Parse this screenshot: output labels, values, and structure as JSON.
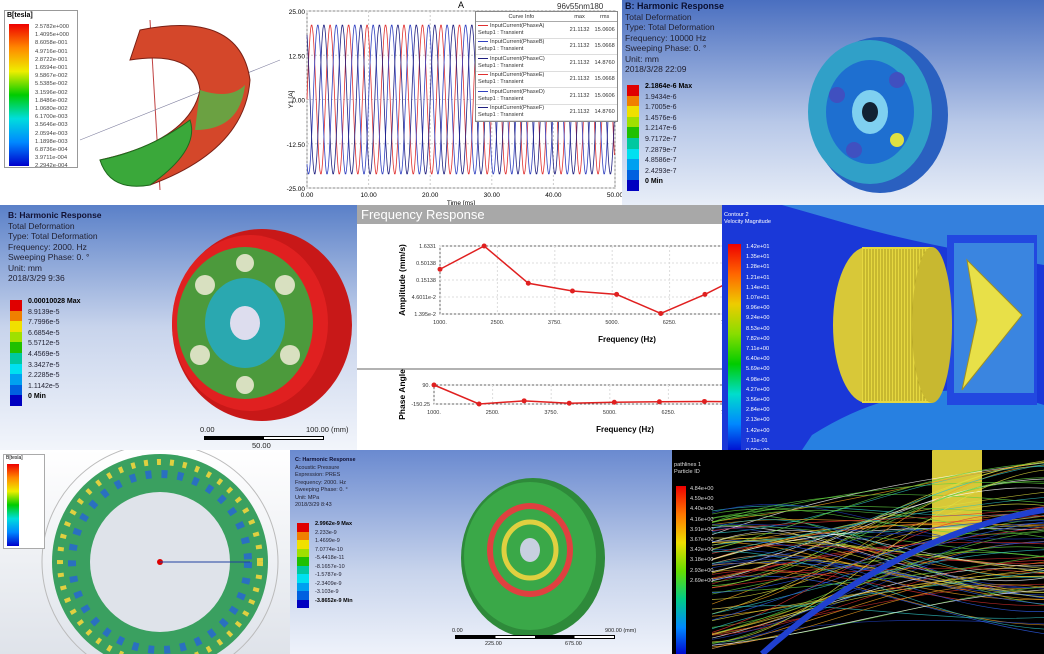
{
  "panel1": {
    "legend_title": "B[tesla]",
    "legend_values": [
      "2.5782e+000",
      "1.4095e+000",
      "8.6058e-001",
      "4.9716e-001",
      "2.8722e-001",
      "1.6594e-001",
      "9.5867e-002",
      "5.5385e-002",
      "3.1596e-002",
      "1.8486e-002",
      "1.0680e-002",
      "6.1700e-003",
      "3.5646e-003",
      "2.0594e-003",
      "1.1898e-003",
      "6.8736e-004",
      "3.9711e-004",
      "2.2942e-004"
    ]
  },
  "panel2": {
    "title": "A",
    "design_name": "96v55nm180",
    "table_headers": [
      "Curve Info",
      "max",
      "rms"
    ],
    "curves": [
      {
        "name": "InputCurrent(PhaseA)",
        "setup": "Setup1 : Transient",
        "max": "21.1132",
        "rms": "15.0606",
        "color": "#e03030"
      },
      {
        "name": "InputCurrent(PhaseB)",
        "setup": "Setup1 : Transient",
        "max": "21.1132",
        "rms": "15.0668",
        "color": "#3040c0"
      },
      {
        "name": "InputCurrent(PhaseC)",
        "setup": "Setup1 : Transient",
        "max": "21.1132",
        "rms": "14.8760",
        "color": "#202080"
      },
      {
        "name": "InputCurrent(PhaseE)",
        "setup": "Setup1 : Transient",
        "max": "21.1132",
        "rms": "15.0668",
        "color": "#e03030"
      },
      {
        "name": "InputCurrent(PhaseD)",
        "setup": "Setup1 : Transient",
        "max": "21.1132",
        "rms": "15.0606",
        "color": "#3040c0"
      },
      {
        "name": "InputCurrent(PhaseF)",
        "setup": "Setup1 : Transient",
        "max": "21.1132",
        "rms": "14.8760",
        "color": "#202080"
      }
    ]
  },
  "panel3": {
    "title": "B: Harmonic Response",
    "lines": [
      "Total Deformation",
      "Type: Total Deformation",
      "Frequency: 10000 Hz",
      "Sweeping Phase: 0. °",
      "Unit: mm",
      "2018/3/28 22:09"
    ],
    "legend_values": [
      "2.1864e-6 Max",
      "1.9434e-6",
      "1.7005e-6",
      "1.4576e-6",
      "1.2147e-6",
      "9.7172e-7",
      "7.2879e-7",
      "4.8586e-7",
      "2.4293e-7",
      "0 Min"
    ]
  },
  "panel4": {
    "title": "B: Harmonic Response",
    "lines": [
      "Total Deformation",
      "Type: Total Deformation",
      "Frequency: 2000. Hz",
      "Sweeping Phase: 0. °",
      "Unit: mm",
      "2018/3/29 9:36"
    ],
    "legend_values": [
      "0.00010028 Max",
      "8.9139e-5",
      "7.7996e-5",
      "6.6854e-5",
      "5.5712e-5",
      "4.4569e-5",
      "3.3427e-5",
      "2.2285e-5",
      "1.1142e-5",
      "0 Min"
    ],
    "scale": {
      "start": "0.00",
      "end": "100.00 (mm)",
      "mid": "50.00"
    }
  },
  "panel5": {
    "title": "Frequency Response"
  },
  "panel6": {
    "legend_title": "Contour 2",
    "legend_subtitle": "Velocity Magnitude",
    "legend_values": [
      "1.42e+01",
      "1.35e+01",
      "1.28e+01",
      "1.21e+01",
      "1.14e+01",
      "1.07e+01",
      "9.96e+00",
      "9.24e+00",
      "8.53e+00",
      "7.82e+00",
      "7.11e+00",
      "6.40e+00",
      "5.69e+00",
      "4.98e+00",
      "4.27e+00",
      "3.56e+00",
      "2.84e+00",
      "2.13e+00",
      "1.42e+00",
      "7.11e-01",
      "0.00e+00"
    ]
  },
  "panel7": {
    "legend_title": "B[tesla]"
  },
  "panel8": {
    "title": "C: Harmonic Response",
    "lines": [
      "Acoustic Pressure",
      "Expression: PRES",
      "Frequency: 2000. Hz",
      "Sweeping Phase: 0. °",
      "Unit: MPa",
      "2018/3/29 8:43"
    ],
    "legend_values": [
      "2.9962e-9 Max",
      "2.233e-9",
      "1.4699e-9",
      "7.0774e-10",
      "-5.4418e-11",
      "-8.1657e-10",
      "-1.5787e-9",
      "-2.3409e-9",
      "-3.103e-9",
      "-3.8652e-9 Min"
    ],
    "scale": {
      "start": "0.00",
      "end": "900.00 (mm)",
      "tick1": "225.00",
      "tick2": "675.00"
    }
  },
  "panel9": {
    "legend_title": "pathlines 1",
    "legend_subtitle": "Particle ID",
    "legend_values": [
      "4.84e+00",
      "4.59e+00",
      "4.40e+00",
      "4.16e+00",
      "3.91e+00",
      "3.67e+00",
      "3.42e+00",
      "3.18e+00",
      "2.93e+00",
      "2.69e+00"
    ]
  },
  "chart_data": [
    {
      "type": "line",
      "title": "A",
      "xlabel": "Time [ms]",
      "ylabel": "Y1 [A]",
      "xlim": [
        0,
        50
      ],
      "ylim": [
        -25,
        25
      ],
      "x_ticks": [
        "0.00",
        "10.00",
        "20.00",
        "30.00",
        "40.00",
        "50.00"
      ],
      "y_ticks": [
        "25.00",
        "12.50",
        "0.00",
        "-12.50",
        "-25.00"
      ],
      "series": [
        {
          "name": "InputCurrent(PhaseA)",
          "amplitude": 21.1132,
          "period_ms": 3.0,
          "phase_deg": 0
        },
        {
          "name": "InputCurrent(PhaseB)",
          "amplitude": 21.1132,
          "period_ms": 3.0,
          "phase_deg": 120
        },
        {
          "name": "InputCurrent(PhaseC)",
          "amplitude": 21.1132,
          "period_ms": 3.0,
          "phase_deg": 240
        }
      ],
      "grid": true,
      "legend": "top-right"
    },
    {
      "type": "line",
      "xlabel": "Frequency (Hz)",
      "ylabel": "Amplitude (mm/s)",
      "yscale": "log",
      "x_ticks": [
        "1000.",
        "2500.",
        "3750.",
        "5000.",
        "6250.",
        "7500"
      ],
      "y_ticks": [
        "1.6331",
        "0.50138",
        "0.15138",
        "4.6011e-2",
        "1.395e-2"
      ],
      "x": [
        1000,
        2000,
        3000,
        4000,
        5000,
        6000,
        7000,
        7500
      ],
      "values": [
        0.32,
        1.6331,
        0.12,
        0.07,
        0.055,
        0.0145,
        0.055,
        0.12
      ],
      "grid": true
    },
    {
      "type": "line",
      "xlabel": "Frequency (Hz)",
      "ylabel": "Phase Angle",
      "x_ticks": [
        "1000.",
        "2500.",
        "3750.",
        "5000.",
        "6250.",
        "7500"
      ],
      "y_ticks": [
        "90.",
        "-150.25"
      ],
      "x": [
        1000,
        2000,
        3000,
        4000,
        5000,
        6000,
        7000,
        7500
      ],
      "values": [
        90,
        -150,
        -110,
        -140,
        -128,
        -122,
        -118,
        -120
      ]
    }
  ]
}
